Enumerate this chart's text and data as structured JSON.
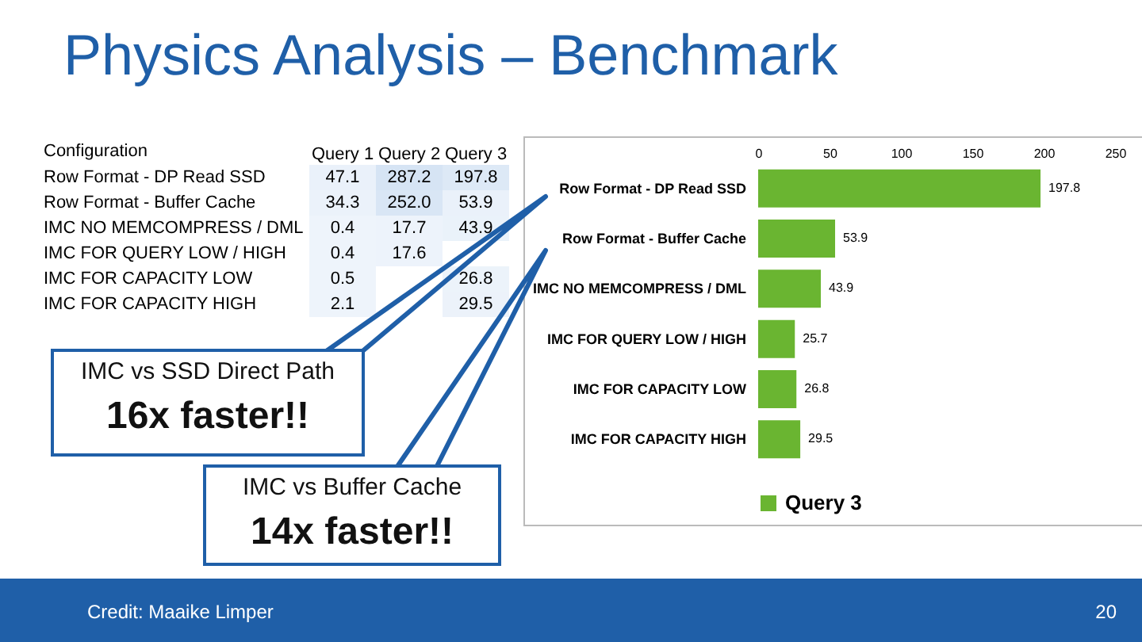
{
  "chart_data": [
    {
      "type": "heatmap",
      "title": "Physics Analysis – Benchmark",
      "ylabel": "Configuration",
      "categories": [
        "Query 1",
        "Query 2",
        "Query 3"
      ],
      "y_categories": [
        "Row Format - DP Read SSD",
        "Row Format - Buffer Cache",
        "IMC NO MEMCOMPRESS / DML",
        "IMC FOR QUERY LOW / HIGH",
        "IMC FOR CAPACITY LOW",
        "IMC FOR CAPACITY HIGH"
      ],
      "cells": [
        [
          47.1,
          287.2,
          197.8
        ],
        [
          34.3,
          252.0,
          53.9
        ],
        [
          0.4,
          17.7,
          43.9
        ],
        [
          0.4,
          17.6,
          null
        ],
        [
          0.5,
          null,
          26.8
        ],
        [
          2.1,
          null,
          29.5
        ]
      ],
      "cell_labels": [
        [
          "47.1",
          "287.2",
          "197.8"
        ],
        [
          "34.3",
          "252.0",
          "53.9"
        ],
        [
          "0.4",
          "17.7",
          "43.9"
        ],
        [
          "0.4",
          "17.6",
          null
        ],
        [
          "0.5",
          null,
          "26.8"
        ],
        [
          "2.1",
          null,
          "29.5"
        ]
      ]
    },
    {
      "type": "bar",
      "orientation": "horizontal",
      "categories": [
        "Row Format - DP Read SSD",
        "Row Format - Buffer Cache",
        "IMC NO MEMCOMPRESS / DML",
        "IMC FOR QUERY LOW / HIGH",
        "IMC FOR CAPACITY LOW",
        "IMC FOR CAPACITY HIGH"
      ],
      "series": [
        {
          "name": "Query 3",
          "color": "#6ab531",
          "values": [
            197.8,
            53.9,
            43.9,
            25.7,
            26.8,
            29.5
          ]
        }
      ],
      "xlim": [
        0,
        250
      ],
      "xticks": [
        0,
        50,
        100,
        150,
        200,
        250
      ],
      "grid": false,
      "legend": "bottom",
      "data_labels": true,
      "annotations": [
        "IMC vs SSD Direct Path",
        "16x faster!!",
        "IMC vs Buffer Cache",
        "14x faster!!",
        "Credit: Maaike Limper",
        "20"
      ]
    }
  ]
}
